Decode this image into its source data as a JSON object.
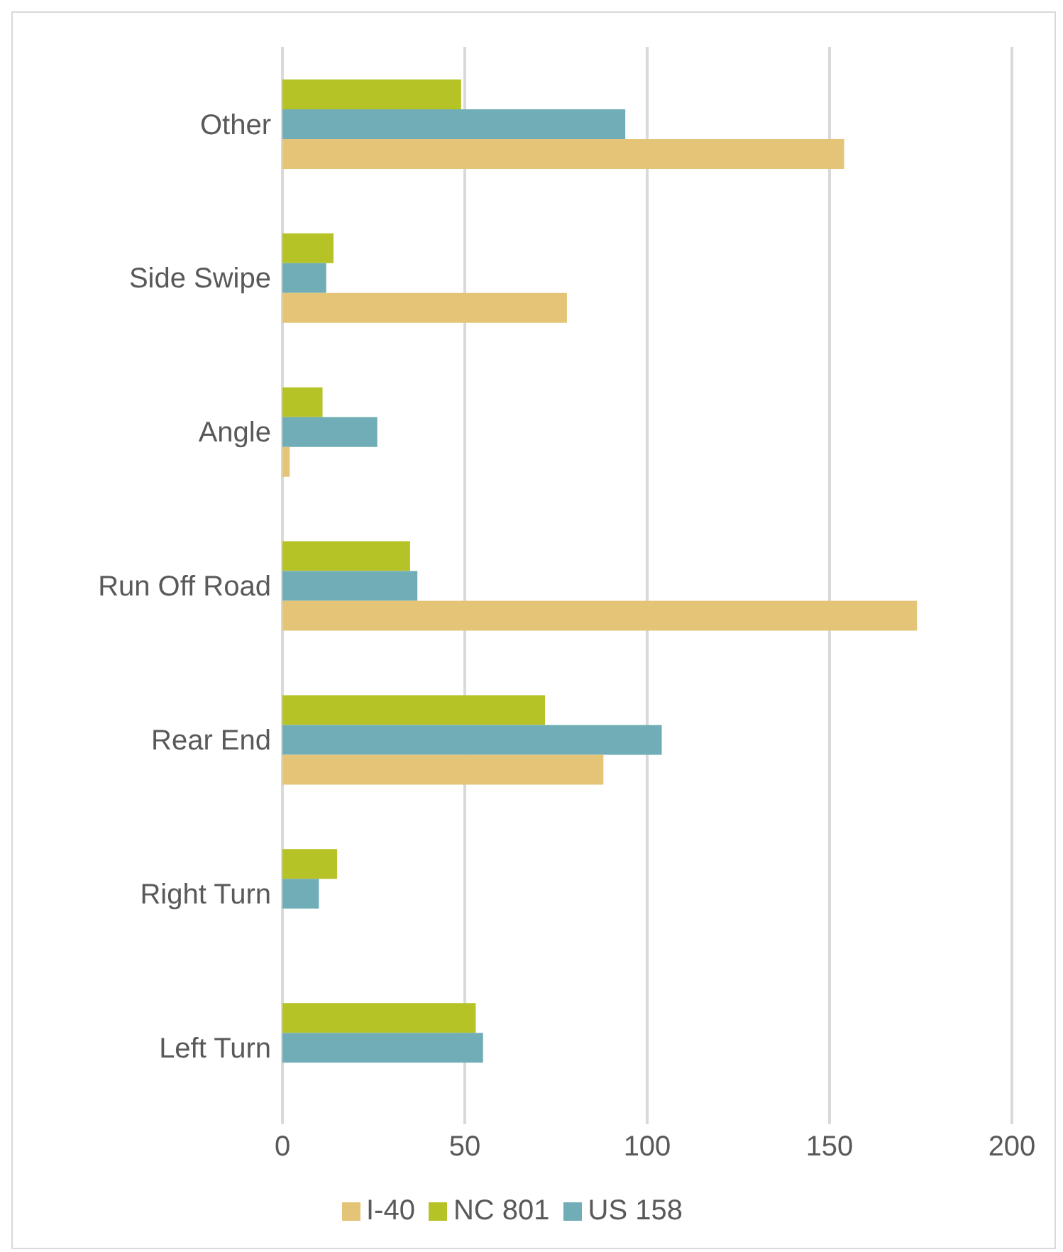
{
  "chart_data": {
    "type": "bar",
    "orientation": "horizontal",
    "categories": [
      "Other",
      "Side Swipe",
      "Angle",
      "Run Off Road",
      "Rear End",
      "Right Turn",
      "Left Turn"
    ],
    "series": [
      {
        "name": "NC 801",
        "color": "#b5c327",
        "values": [
          49,
          14,
          11,
          35,
          72,
          15,
          53
        ]
      },
      {
        "name": "US 158",
        "color": "#70adb7",
        "values": [
          94,
          12,
          26,
          37,
          104,
          10,
          55
        ]
      },
      {
        "name": "I-40",
        "color": "#e4c476",
        "values": [
          154,
          78,
          2,
          174,
          88,
          0,
          0
        ]
      }
    ],
    "xlim": [
      0,
      200
    ],
    "xticks": [
      0,
      50,
      100,
      150,
      200
    ],
    "grid": "x",
    "legend": "bottom"
  }
}
